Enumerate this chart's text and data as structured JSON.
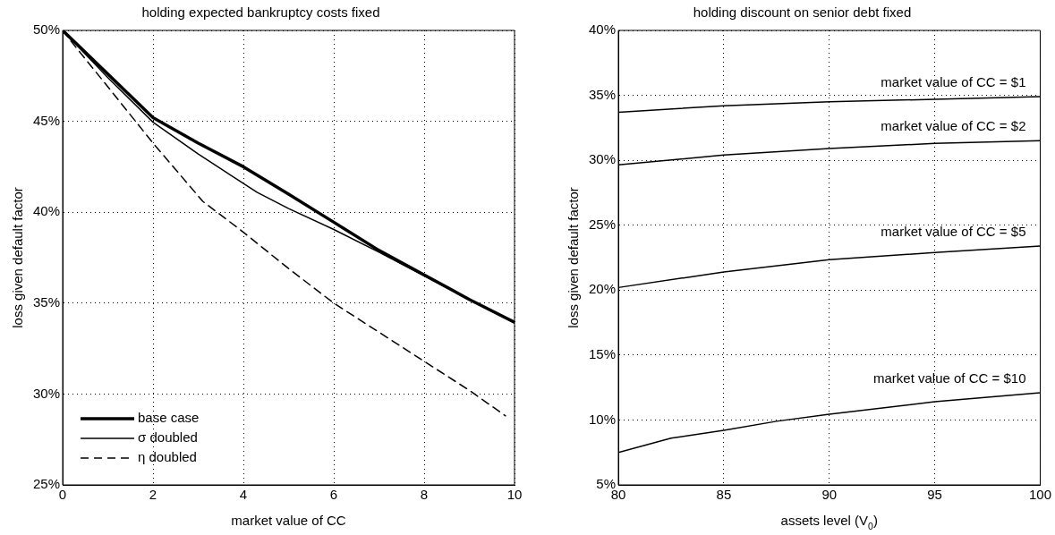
{
  "chart_data": [
    {
      "type": "line",
      "title": "holding expected bankruptcy costs fixed",
      "xlabel": "market value of CC",
      "ylabel": "loss given default factor",
      "xlim": [
        0,
        10
      ],
      "xticks": [
        0,
        2,
        4,
        6,
        8,
        10
      ],
      "ylim": [
        25,
        50
      ],
      "yticks": [
        {
          "value": 25,
          "label": "25%"
        },
        {
          "value": 30,
          "label": "30%"
        },
        {
          "value": 35,
          "label": "35%"
        },
        {
          "value": 40,
          "label": "40%"
        },
        {
          "value": 45,
          "label": "45%"
        },
        {
          "value": 50,
          "label": "50%"
        }
      ],
      "grid": true,
      "legend": "bottom left",
      "series": [
        {
          "name": "base case",
          "color": "#000000",
          "line_style": "solid",
          "x": [
            0,
            1,
            2,
            3,
            4,
            5,
            6,
            7,
            8,
            9,
            10
          ],
          "values": [
            50,
            47.6,
            45.2,
            43.8,
            42.5,
            41.0,
            39.45,
            37.9,
            36.55,
            35.2,
            33.95
          ]
        },
        {
          "name": "σ doubled",
          "color": "#000000",
          "line_style": "solid",
          "x": [
            0,
            1,
            2,
            3,
            4.3,
            5,
            6,
            7,
            8,
            9,
            10
          ],
          "values": [
            50,
            47.4,
            44.95,
            43.2,
            41.1,
            40.2,
            39.05,
            37.8,
            36.5,
            35.2,
            33.9
          ]
        },
        {
          "name": "η doubled",
          "color": "#000000",
          "line_style": "dashed",
          "x": [
            0,
            0.3,
            1,
            2,
            3.1,
            4,
            5,
            6,
            7,
            8,
            9,
            9.8
          ],
          "values": [
            50,
            49.05,
            46.9,
            43.8,
            40.6,
            38.9,
            36.9,
            35.0,
            33.4,
            31.8,
            30.2,
            28.8
          ]
        }
      ]
    },
    {
      "type": "line",
      "title": "holding discount on senior debt fixed",
      "xlabel": "assets level (V$_{0}$)",
      "ylabel": "loss given default factor",
      "xlim": [
        80,
        100
      ],
      "xticks": [
        80,
        85,
        90,
        95,
        100
      ],
      "ylim": [
        5,
        40
      ],
      "yticks": [
        {
          "value": 5,
          "label": "5%"
        },
        {
          "value": 10,
          "label": "10%"
        },
        {
          "value": 15,
          "label": "15%"
        },
        {
          "value": 20,
          "label": "20%"
        },
        {
          "value": 25,
          "label": "25%"
        },
        {
          "value": 30,
          "label": "30%"
        },
        {
          "value": 35,
          "label": "35%"
        },
        {
          "value": 40,
          "label": "40%"
        }
      ],
      "grid": true,
      "x": [
        80,
        85,
        90,
        95,
        100
      ],
      "series": [
        {
          "name": "market value of CC = $1",
          "color": "#000000",
          "values": [
            33.7,
            34.2,
            34.5,
            34.7,
            34.9
          ]
        },
        {
          "name": "market value of CC = $2",
          "color": "#000000",
          "values": [
            29.65,
            30.4,
            30.9,
            31.3,
            31.5
          ]
        },
        {
          "name": "market value of CC = $5",
          "color": "#000000",
          "values": [
            20.2,
            21.4,
            22.35,
            22.9,
            23.4
          ]
        },
        {
          "name": "market value of CC = $10",
          "color": "#000000",
          "x": [
            80,
            82.5,
            85,
            87.5,
            90,
            95,
            100
          ],
          "values": [
            7.5,
            8.6,
            9.2,
            9.9,
            10.45,
            11.4,
            12.1
          ]
        }
      ]
    }
  ]
}
